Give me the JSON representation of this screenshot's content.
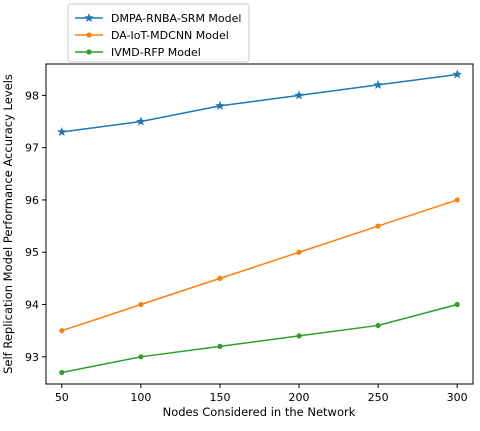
{
  "chart_data": {
    "type": "line",
    "title": "",
    "xlabel": "Nodes Considered in the Network",
    "ylabel": "Self Replication Model Performance Accuracy Levels",
    "x": [
      50,
      100,
      150,
      200,
      250,
      300
    ],
    "xticks": [
      "50",
      "100",
      "150",
      "200",
      "250",
      "300"
    ],
    "yticks": [
      "93",
      "94",
      "95",
      "96",
      "97",
      "98"
    ],
    "xlim": [
      40,
      310
    ],
    "ylim": [
      92.48,
      98.6
    ],
    "grid": false,
    "legend_position": "top-left",
    "series": [
      {
        "name": "DMPA-RNBA-SRM Model",
        "color": "#1f77b4",
        "marker": "star",
        "values": [
          97.3,
          97.5,
          97.8,
          98.0,
          98.2,
          98.4
        ]
      },
      {
        "name": "DA-IoT-MDCNN Model",
        "color": "#ff7f0e",
        "marker": "circle",
        "values": [
          93.5,
          94.0,
          94.5,
          95.0,
          95.5,
          96.0
        ]
      },
      {
        "name": "IVMD-RFP Model",
        "color": "#2ca02c",
        "marker": "circle",
        "values": [
          92.7,
          93.0,
          93.2,
          93.4,
          93.6,
          94.0
        ]
      }
    ]
  }
}
